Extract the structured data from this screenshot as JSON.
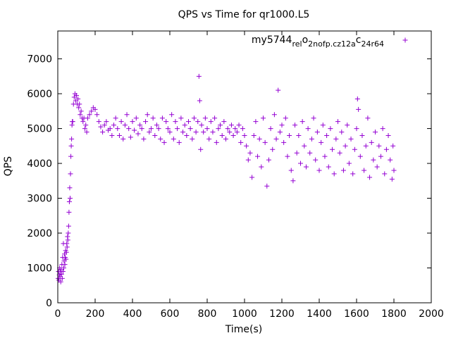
{
  "chart_data": {
    "type": "scatter",
    "title": "QPS vs Time for qr1000.L5",
    "xlabel": "Time(s)",
    "ylabel": "QPS",
    "xlim": [
      0,
      2000
    ],
    "ylim": [
      0,
      7800
    ],
    "xticks": [
      0,
      200,
      400,
      600,
      800,
      1000,
      1200,
      1400,
      1600,
      1800,
      2000
    ],
    "yticks": [
      0,
      1000,
      2000,
      3000,
      4000,
      5000,
      6000,
      7000
    ],
    "legend_position": "top-right",
    "grid": false,
    "series": [
      {
        "name": "my5744rel_o2nofp.cz12a_c24r64",
        "name_parts": {
          "base1": "my5744",
          "sub1": "rel",
          "base2": "o",
          "sub2": "2nofp.cz12a",
          "base3": "c",
          "sub3": "24r64"
        },
        "color": "#9400d3",
        "marker": "+",
        "points": [
          [
            2,
            700
          ],
          [
            4,
            900
          ],
          [
            6,
            650
          ],
          [
            8,
            800
          ],
          [
            10,
            1000
          ],
          [
            12,
            750
          ],
          [
            14,
            900
          ],
          [
            16,
            600
          ],
          [
            18,
            950
          ],
          [
            20,
            820
          ],
          [
            22,
            1100
          ],
          [
            24,
            700
          ],
          [
            26,
            1300
          ],
          [
            28,
            900
          ],
          [
            30,
            1700
          ],
          [
            32,
            1000
          ],
          [
            34,
            1200
          ],
          [
            36,
            1400
          ],
          [
            38,
            1100
          ],
          [
            40,
            1300
          ],
          [
            42,
            1500
          ],
          [
            44,
            1250
          ],
          [
            46,
            1450
          ],
          [
            48,
            1700
          ],
          [
            50,
            1600
          ],
          [
            52,
            1900
          ],
          [
            54,
            1800
          ],
          [
            56,
            2000
          ],
          [
            58,
            2200
          ],
          [
            60,
            2600
          ],
          [
            62,
            2900
          ],
          [
            64,
            3300
          ],
          [
            66,
            3000
          ],
          [
            68,
            3700
          ],
          [
            70,
            4200
          ],
          [
            72,
            4500
          ],
          [
            74,
            4700
          ],
          [
            76,
            5100
          ],
          [
            78,
            5200
          ],
          [
            80,
            5200
          ],
          [
            84,
            5700
          ],
          [
            88,
            5900
          ],
          [
            92,
            6000
          ],
          [
            96,
            5800
          ],
          [
            100,
            5950
          ],
          [
            104,
            5700
          ],
          [
            108,
            5850
          ],
          [
            112,
            5600
          ],
          [
            116,
            5700
          ],
          [
            120,
            5400
          ],
          [
            125,
            5500
          ],
          [
            130,
            5300
          ],
          [
            135,
            5200
          ],
          [
            140,
            5300
          ],
          [
            145,
            5000
          ],
          [
            150,
            5100
          ],
          [
            155,
            4900
          ],
          [
            160,
            5300
          ],
          [
            170,
            5400
          ],
          [
            180,
            5500
          ],
          [
            190,
            5600
          ],
          [
            200,
            5550
          ],
          [
            210,
            5400
          ],
          [
            220,
            5200
          ],
          [
            230,
            5050
          ],
          [
            240,
            4900
          ],
          [
            250,
            5100
          ],
          [
            260,
            5200
          ],
          [
            270,
            4950
          ],
          [
            280,
            5000
          ],
          [
            290,
            4800
          ],
          [
            300,
            5100
          ],
          [
            310,
            5300
          ],
          [
            320,
            5000
          ],
          [
            330,
            4800
          ],
          [
            340,
            5200
          ],
          [
            350,
            4700
          ],
          [
            360,
            5100
          ],
          [
            370,
            5400
          ],
          [
            380,
            5000
          ],
          [
            390,
            4750
          ],
          [
            400,
            5200
          ],
          [
            410,
            4950
          ],
          [
            420,
            5300
          ],
          [
            430,
            4850
          ],
          [
            440,
            5100
          ],
          [
            450,
            5000
          ],
          [
            460,
            4700
          ],
          [
            470,
            5200
          ],
          [
            480,
            5400
          ],
          [
            490,
            4900
          ],
          [
            500,
            5000
          ],
          [
            510,
            5300
          ],
          [
            520,
            4800
          ],
          [
            530,
            5100
          ],
          [
            540,
            5000
          ],
          [
            550,
            4700
          ],
          [
            560,
            5300
          ],
          [
            570,
            4600
          ],
          [
            580,
            5200
          ],
          [
            590,
            5000
          ],
          [
            600,
            4900
          ],
          [
            610,
            5400
          ],
          [
            620,
            4700
          ],
          [
            630,
            5200
          ],
          [
            640,
            5000
          ],
          [
            650,
            4600
          ],
          [
            660,
            5300
          ],
          [
            670,
            4900
          ],
          [
            680,
            5100
          ],
          [
            690,
            4800
          ],
          [
            700,
            5200
          ],
          [
            710,
            5000
          ],
          [
            720,
            4700
          ],
          [
            730,
            5300
          ],
          [
            740,
            4900
          ],
          [
            750,
            5200
          ],
          [
            756,
            6500
          ],
          [
            760,
            5800
          ],
          [
            765,
            4400
          ],
          [
            770,
            5100
          ],
          [
            780,
            4900
          ],
          [
            790,
            5300
          ],
          [
            800,
            5000
          ],
          [
            810,
            4700
          ],
          [
            820,
            5200
          ],
          [
            830,
            4900
          ],
          [
            840,
            5300
          ],
          [
            850,
            4600
          ],
          [
            860,
            5000
          ],
          [
            870,
            5100
          ],
          [
            880,
            4800
          ],
          [
            890,
            5200
          ],
          [
            900,
            4700
          ],
          [
            910,
            5000
          ],
          [
            920,
            4900
          ],
          [
            930,
            5100
          ],
          [
            940,
            4800
          ],
          [
            950,
            5000
          ],
          [
            960,
            4900
          ],
          [
            970,
            5100
          ],
          [
            980,
            4600
          ],
          [
            990,
            5000
          ],
          [
            1000,
            4800
          ],
          [
            1010,
            4500
          ],
          [
            1020,
            4100
          ],
          [
            1030,
            4300
          ],
          [
            1040,
            3600
          ],
          [
            1050,
            4800
          ],
          [
            1060,
            5200
          ],
          [
            1070,
            4200
          ],
          [
            1080,
            4700
          ],
          [
            1090,
            3900
          ],
          [
            1100,
            5300
          ],
          [
            1110,
            4600
          ],
          [
            1120,
            3350
          ],
          [
            1130,
            4100
          ],
          [
            1140,
            5000
          ],
          [
            1150,
            4400
          ],
          [
            1160,
            5400
          ],
          [
            1170,
            4700
          ],
          [
            1180,
            6100
          ],
          [
            1190,
            4900
          ],
          [
            1200,
            5100
          ],
          [
            1210,
            4600
          ],
          [
            1220,
            5300
          ],
          [
            1230,
            4200
          ],
          [
            1240,
            4800
          ],
          [
            1250,
            3800
          ],
          [
            1260,
            3500
          ],
          [
            1270,
            5100
          ],
          [
            1280,
            4300
          ],
          [
            1290,
            4800
          ],
          [
            1300,
            4000
          ],
          [
            1310,
            5200
          ],
          [
            1320,
            4500
          ],
          [
            1330,
            3900
          ],
          [
            1340,
            5000
          ],
          [
            1350,
            4300
          ],
          [
            1360,
            4700
          ],
          [
            1370,
            5300
          ],
          [
            1380,
            4100
          ],
          [
            1390,
            4900
          ],
          [
            1400,
            3800
          ],
          [
            1410,
            4600
          ],
          [
            1420,
            5100
          ],
          [
            1430,
            4200
          ],
          [
            1440,
            4800
          ],
          [
            1450,
            3900
          ],
          [
            1460,
            5000
          ],
          [
            1470,
            4400
          ],
          [
            1480,
            3700
          ],
          [
            1490,
            4700
          ],
          [
            1500,
            5200
          ],
          [
            1510,
            4300
          ],
          [
            1520,
            4900
          ],
          [
            1530,
            3800
          ],
          [
            1540,
            4500
          ],
          [
            1550,
            5100
          ],
          [
            1560,
            4000
          ],
          [
            1570,
            4700
          ],
          [
            1580,
            3700
          ],
          [
            1590,
            4400
          ],
          [
            1600,
            5000
          ],
          [
            1605,
            5850
          ],
          [
            1610,
            5550
          ],
          [
            1620,
            4200
          ],
          [
            1630,
            4800
          ],
          [
            1640,
            3800
          ],
          [
            1650,
            4500
          ],
          [
            1660,
            5300
          ],
          [
            1670,
            3600
          ],
          [
            1680,
            4600
          ],
          [
            1690,
            4100
          ],
          [
            1700,
            4900
          ],
          [
            1710,
            3900
          ],
          [
            1720,
            4500
          ],
          [
            1730,
            4200
          ],
          [
            1740,
            5000
          ],
          [
            1750,
            3700
          ],
          [
            1760,
            4400
          ],
          [
            1770,
            4800
          ],
          [
            1780,
            4100
          ],
          [
            1790,
            3550
          ],
          [
            1795,
            4500
          ],
          [
            1800,
            3800
          ]
        ]
      }
    ]
  }
}
